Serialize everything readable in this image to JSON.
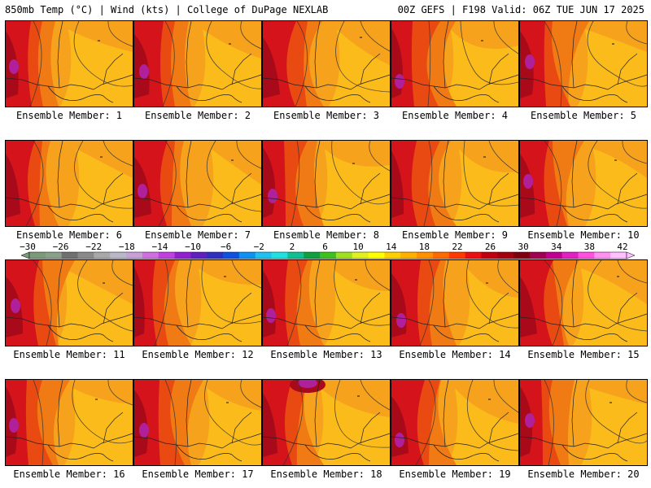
{
  "header": {
    "left": "850mb Temp (°C) | Wind (kts) | College of DuPage NEXLAB",
    "right": "00Z GEFS | F198 Valid: 06Z TUE JUN 17 2025"
  },
  "panels": [
    {
      "label": "Ensemble Member: 1"
    },
    {
      "label": "Ensemble Member: 2"
    },
    {
      "label": "Ensemble Member: 3"
    },
    {
      "label": "Ensemble Member: 4"
    },
    {
      "label": "Ensemble Member: 5"
    },
    {
      "label": "Ensemble Member: 6"
    },
    {
      "label": "Ensemble Member: 7"
    },
    {
      "label": "Ensemble Member: 8"
    },
    {
      "label": "Ensemble Member: 9"
    },
    {
      "label": "Ensemble Member: 10"
    },
    {
      "label": "Ensemble Member: 11"
    },
    {
      "label": "Ensemble Member: 12"
    },
    {
      "label": "Ensemble Member: 13"
    },
    {
      "label": "Ensemble Member: 14"
    },
    {
      "label": "Ensemble Member: 15"
    },
    {
      "label": "Ensemble Member: 16"
    },
    {
      "label": "Ensemble Member: 17"
    },
    {
      "label": "Ensemble Member: 18"
    },
    {
      "label": "Ensemble Member: 19"
    },
    {
      "label": "Ensemble Member: 20"
    }
  ],
  "colorbar": {
    "tick_labels": [
      "−30",
      "−26",
      "−22",
      "−18",
      "−14",
      "−10",
      "−6",
      "−2",
      "2",
      "6",
      "10",
      "14",
      "18",
      "22",
      "26",
      "30",
      "34",
      "38",
      "42"
    ],
    "colors": [
      "#7a9a7a",
      "#8aa08a",
      "#707070",
      "#8a8a8a",
      "#a8a8a8",
      "#b8b8c8",
      "#c8a0d8",
      "#d070e0",
      "#c040e0",
      "#9020d0",
      "#6020c0",
      "#3030c0",
      "#1050e0",
      "#1090f0",
      "#20c0f0",
      "#20e0e0",
      "#10c090",
      "#10a040",
      "#40c020",
      "#a0e020",
      "#e0f020",
      "#ffff00",
      "#ffd000",
      "#ffb000",
      "#ff9000",
      "#ff6a00",
      "#ff3a00",
      "#e81010",
      "#c00010",
      "#a00010",
      "#800010",
      "#a00050",
      "#c00090",
      "#e020c0",
      "#ff50e0",
      "#ff90f0",
      "#ffc0ff"
    ]
  },
  "map_colors": {
    "warm_base": "#f7a21c",
    "light": "#fbc21a",
    "orange": "#f07a14",
    "red_orange": "#e84a12",
    "red": "#d4141a",
    "dark_red": "#a80a1a",
    "magenta": "#b0209a"
  }
}
